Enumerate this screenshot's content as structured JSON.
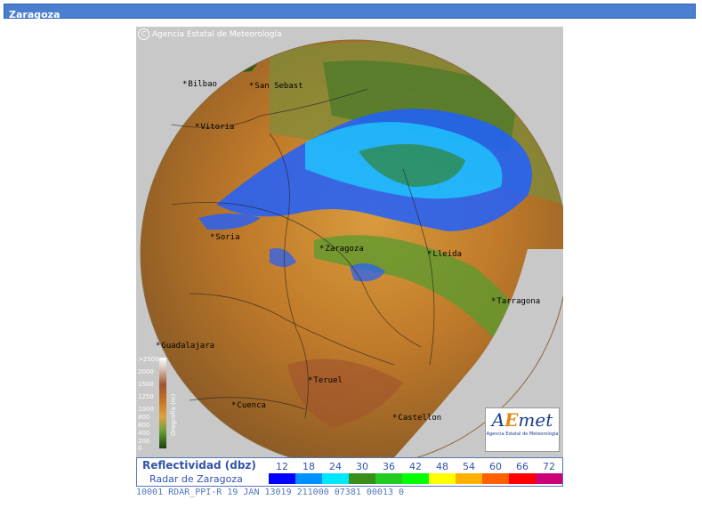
{
  "header": {
    "title": "Zaragoza"
  },
  "map": {
    "copyright": "Agencia Estatal de Meteorología",
    "cities": [
      "Bilbao",
      "San Sebast",
      "Vitoria",
      "Soria",
      "Zaragoza",
      "Lleida",
      "Tarragona",
      "Guadalajara",
      "Teruel",
      "Cuenca",
      "Castellon"
    ],
    "logo": {
      "brand_a": "A",
      "brand_e": "E",
      "brand_rest": "met",
      "subtitle": "Agencia Estatal de Meteorología"
    },
    "orography": {
      "values": [
        ">2500",
        "2000",
        "1500",
        "1250",
        "1000",
        "800",
        "600",
        "400",
        "200",
        "0"
      ],
      "label": "Orografía (m)"
    }
  },
  "legend": {
    "title": "Reflectividad (dbz)",
    "subtitle": "Radar de Zaragoza",
    "levels": [
      {
        "value": "12",
        "color": "#0000ff"
      },
      {
        "value": "18",
        "color": "#0090ff"
      },
      {
        "value": "24",
        "color": "#00e8ff"
      },
      {
        "value": "30",
        "color": "#3a8f1a"
      },
      {
        "value": "36",
        "color": "#22cc22"
      },
      {
        "value": "42",
        "color": "#00ff00"
      },
      {
        "value": "48",
        "color": "#ffff00"
      },
      {
        "value": "54",
        "color": "#ffb000"
      },
      {
        "value": "60",
        "color": "#ff6000"
      },
      {
        "value": "66",
        "color": "#ff0000"
      },
      {
        "value": "72",
        "color": "#cc0077"
      }
    ]
  },
  "status": {
    "text": "10001 RDAR_PPI-R   19 JAN 13019 211000 07381 00013 0"
  }
}
